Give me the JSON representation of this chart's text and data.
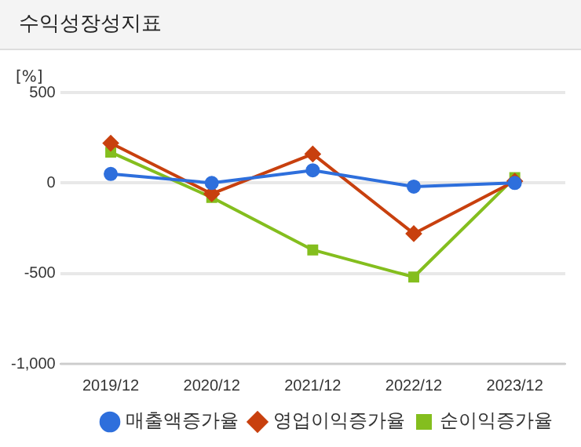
{
  "chart_data": {
    "type": "line",
    "title": "수익성장성지표",
    "ylabel": "[%]",
    "categories": [
      "2019/12",
      "2020/12",
      "2021/12",
      "2022/12",
      "2023/12"
    ],
    "series": [
      {
        "name": "매출액증가율",
        "color": "#2e6fdc",
        "marker": "circle",
        "values": [
          50,
          0,
          70,
          -20,
          0
        ]
      },
      {
        "name": "영업이익증가율",
        "color": "#c8400e",
        "marker": "diamond",
        "values": [
          220,
          -60,
          160,
          -280,
          10
        ]
      },
      {
        "name": "순이익증가율",
        "color": "#84be1e",
        "marker": "square",
        "values": [
          170,
          -80,
          -370,
          -520,
          30
        ]
      }
    ],
    "ylim": [
      -1000,
      500
    ],
    "yticks": [
      {
        "value": -1000,
        "label": "-1,000"
      },
      {
        "value": -500,
        "label": "-500"
      },
      {
        "value": 0,
        "label": "0"
      },
      {
        "value": 500,
        "label": "500"
      }
    ],
    "grid": "y",
    "legend": "bottom",
    "line_style": "solid"
  }
}
